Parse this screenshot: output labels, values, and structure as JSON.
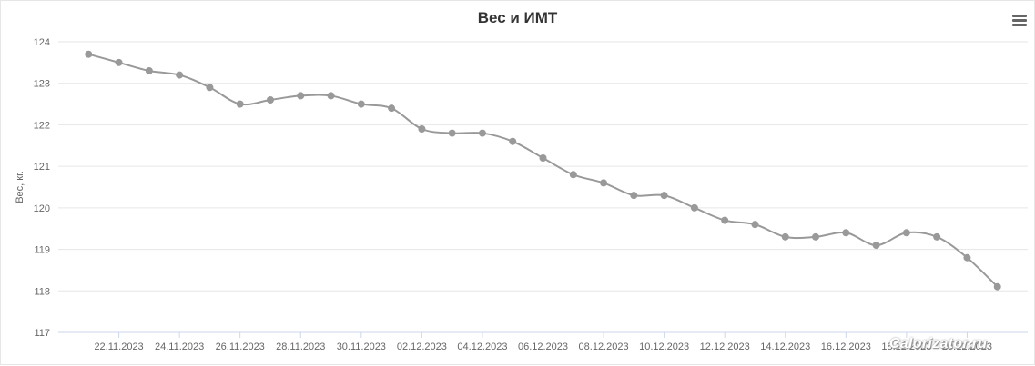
{
  "menu_icon": "hamburger-menu-icon",
  "watermark": "Calorizator.ru",
  "colors": {
    "series": "#999999",
    "grid": "#e6e6e6",
    "axis_line": "#ccd6eb",
    "text": "#666666",
    "title": "#333333"
  },
  "chart_data": {
    "type": "line",
    "title": "Вес и ИМТ",
    "ylabel": "Вес, кг.",
    "ylim": [
      117,
      124
    ],
    "yticks": [
      124,
      123,
      122,
      121,
      120,
      119,
      118,
      117
    ],
    "xlim": [
      "20.11.2023",
      "22.12.2023"
    ],
    "xtick_labels": [
      "22.11.2023",
      "24.11.2023",
      "26.11.2023",
      "28.11.2023",
      "30.11.2023",
      "02.12.2023",
      "04.12.2023",
      "06.12.2023",
      "08.12.2023",
      "10.12.2023",
      "12.12.2023",
      "14.12.2023",
      "16.12.2023",
      "18.12.2023",
      "20.12.2023"
    ],
    "grid": true,
    "legend": "none",
    "smooth": true,
    "series": [
      {
        "color": "#999999",
        "points": [
          {
            "x": "21.11.2023",
            "y": 123.7
          },
          {
            "x": "22.11.2023",
            "y": 123.5
          },
          {
            "x": "23.11.2023",
            "y": 123.3
          },
          {
            "x": "24.11.2023",
            "y": 123.2
          },
          {
            "x": "25.11.2023",
            "y": 122.9
          },
          {
            "x": "26.11.2023",
            "y": 122.5
          },
          {
            "x": "27.11.2023",
            "y": 122.6
          },
          {
            "x": "28.11.2023",
            "y": 122.7
          },
          {
            "x": "29.11.2023",
            "y": 122.7
          },
          {
            "x": "30.11.2023",
            "y": 122.5
          },
          {
            "x": "01.12.2023",
            "y": 122.4
          },
          {
            "x": "02.12.2023",
            "y": 121.9
          },
          {
            "x": "03.12.2023",
            "y": 121.8
          },
          {
            "x": "04.12.2023",
            "y": 121.8
          },
          {
            "x": "05.12.2023",
            "y": 121.6
          },
          {
            "x": "06.12.2023",
            "y": 121.2
          },
          {
            "x": "07.12.2023",
            "y": 120.8
          },
          {
            "x": "08.12.2023",
            "y": 120.6
          },
          {
            "x": "09.12.2023",
            "y": 120.3
          },
          {
            "x": "10.12.2023",
            "y": 120.3
          },
          {
            "x": "11.12.2023",
            "y": 120.0
          },
          {
            "x": "12.12.2023",
            "y": 119.7
          },
          {
            "x": "13.12.2023",
            "y": 119.6
          },
          {
            "x": "14.12.2023",
            "y": 119.3
          },
          {
            "x": "15.12.2023",
            "y": 119.3
          },
          {
            "x": "16.12.2023",
            "y": 119.4
          },
          {
            "x": "17.12.2023",
            "y": 119.1
          },
          {
            "x": "18.12.2023",
            "y": 119.4
          },
          {
            "x": "19.12.2023",
            "y": 119.3
          },
          {
            "x": "20.12.2023",
            "y": 118.8
          },
          {
            "x": "21.12.2023",
            "y": 118.1
          }
        ]
      }
    ]
  }
}
